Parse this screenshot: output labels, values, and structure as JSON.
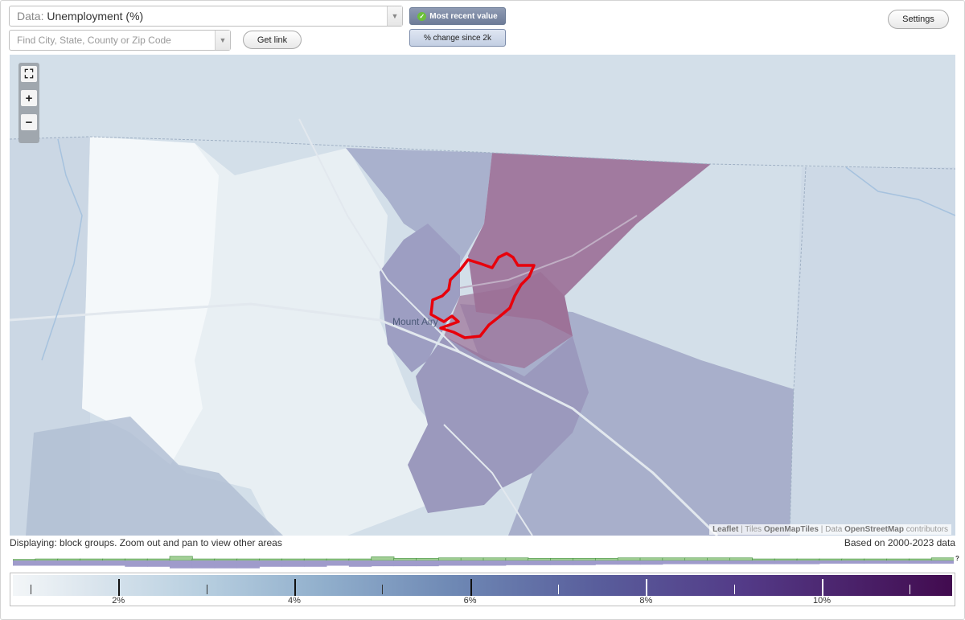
{
  "controls": {
    "data_prefix": "Data:",
    "data_value": "Unemployment (%)",
    "search_placeholder": "Find City, State, County or Zip Code",
    "get_link_label": "Get link",
    "settings_label": "Settings",
    "toggle_recent_label": "Most recent value",
    "toggle_change_label": "% change since 2k"
  },
  "map": {
    "city_label": "Mount Airy",
    "attribution": {
      "leaflet": "Leaflet",
      "tiles_prefix": "Tiles",
      "tiles": "OpenMapTiles",
      "data_prefix": "Data",
      "data": "OpenStreetMap",
      "suffix": "contributors"
    },
    "highlight_color": "#e8000b"
  },
  "footer": {
    "displaying": "Displaying: block groups. Zoom out and pan to view other areas",
    "based_on": "Based on 2000-2023 data",
    "question_mark": "?"
  },
  "legend": {
    "tick_labels": [
      "2%",
      "4%",
      "6%",
      "8%",
      "10%"
    ],
    "major_values": [
      2,
      4,
      6,
      8,
      10
    ],
    "minor_values": [
      1,
      3,
      5,
      7,
      9,
      11
    ],
    "min": 0.8,
    "max": 11.5
  },
  "histogram": {
    "green_bars": [
      0.1,
      0.15,
      0.15,
      0.15,
      0.15,
      0.15,
      0.15,
      0.4,
      0.15,
      0.15,
      0.15,
      0.15,
      0.15,
      0.15,
      0.15,
      0.15,
      0.35,
      0.2,
      0.2,
      0.25,
      0.25,
      0.25,
      0.25,
      0.2,
      0.2,
      0.2,
      0.2,
      0.25,
      0.25,
      0.25,
      0.25,
      0.25,
      0.25,
      0.15,
      0.15,
      0.15,
      0.15,
      0.15,
      0.15,
      0.15,
      0.15,
      0.25
    ],
    "purple_bars": [
      0.5,
      0.5,
      0.5,
      0.5,
      0.5,
      0.6,
      0.6,
      0.75,
      0.75,
      0.75,
      0.75,
      0.6,
      0.6,
      0.6,
      0.5,
      0.6,
      0.55,
      0.55,
      0.55,
      0.5,
      0.5,
      0.5,
      0.45,
      0.45,
      0.45,
      0.45,
      0.4,
      0.4,
      0.4,
      0.35,
      0.35,
      0.35,
      0.35,
      0.35,
      0.35,
      0.35,
      0.3,
      0.3,
      0.3,
      0.3,
      0.3,
      0.3
    ]
  }
}
